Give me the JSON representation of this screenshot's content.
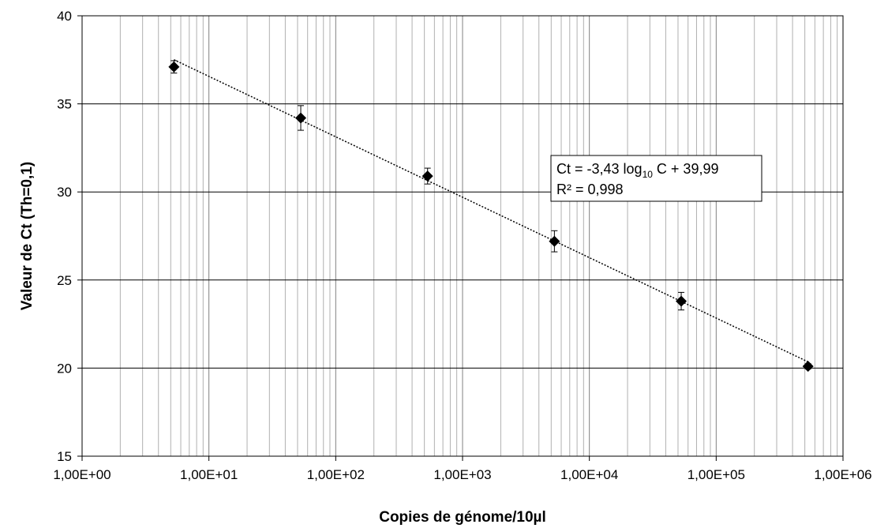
{
  "chart_data": {
    "type": "scatter",
    "xlabel": "Copies de génome/10µl",
    "ylabel": "Valeur de Ct (Th=0,1)",
    "x_scale": "log10",
    "xlim": [
      1,
      1000000
    ],
    "ylim": [
      15,
      40
    ],
    "x_ticks": [
      1,
      10,
      100,
      1000,
      10000,
      100000,
      1000000
    ],
    "x_tick_labels": [
      "1,00E+00",
      "1,00E+01",
      "1,00E+02",
      "1,00E+03",
      "1,00E+04",
      "1,00E+05",
      "1,00E+06"
    ],
    "y_ticks": [
      15,
      20,
      25,
      30,
      35,
      40
    ],
    "y_tick_labels": [
      "15",
      "20",
      "25",
      "30",
      "35",
      "40"
    ],
    "grid": true,
    "series": [
      {
        "x": [
          5.3,
          53,
          530,
          5300,
          53000,
          530000
        ],
        "y": [
          37.1,
          34.2,
          30.9,
          27.2,
          23.8,
          20.1
        ],
        "y_err": [
          0.35,
          0.7,
          0.45,
          0.6,
          0.5,
          0.15
        ],
        "marker": "diamond",
        "color": "#000000"
      }
    ],
    "trendline": {
      "slope": -3.43,
      "intercept": 39.99,
      "style": "dotted",
      "x_range": [
        5.3,
        530000
      ]
    },
    "annotation": {
      "line1_prefix": "Ct = -3,43 log",
      "line1_sub": "10",
      "line1_suffix": " C + 39,99",
      "line2": "R² = 0,998"
    }
  }
}
